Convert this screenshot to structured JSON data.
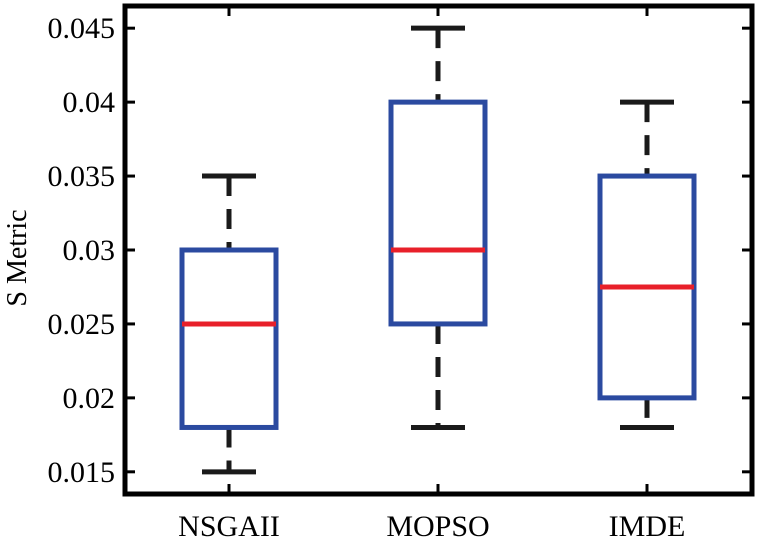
{
  "chart_data": {
    "type": "boxplot",
    "title": "",
    "xlabel": "",
    "ylabel": "S Metric",
    "ylim": [
      0.0135,
      0.0465
    ],
    "yticks": [
      0.015,
      0.02,
      0.025,
      0.03,
      0.035,
      0.04,
      0.045
    ],
    "ytick_labels": [
      "0.015",
      "0.02",
      "0.025",
      "0.03",
      "0.035",
      "0.04",
      "0.045"
    ],
    "categories": [
      "NSGAII",
      "MOPSO",
      "IMDE"
    ],
    "boxes": [
      {
        "name": "NSGAII",
        "whisker_low": 0.015,
        "q1": 0.018,
        "median": 0.025,
        "q3": 0.03,
        "whisker_high": 0.035
      },
      {
        "name": "MOPSO",
        "whisker_low": 0.018,
        "q1": 0.025,
        "median": 0.03,
        "q3": 0.04,
        "whisker_high": 0.045
      },
      {
        "name": "IMDE",
        "whisker_low": 0.018,
        "q1": 0.02,
        "median": 0.0275,
        "q3": 0.035,
        "whisker_high": 0.04
      }
    ],
    "colors": {
      "box": "#2b4aa0",
      "median": "#e8202a",
      "whisker": "#1a1a1a",
      "axis": "#000000"
    }
  }
}
